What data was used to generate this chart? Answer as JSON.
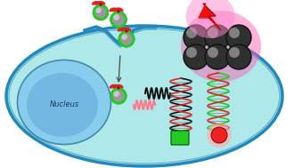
{
  "cell_color": "#aee8e8",
  "cell_edge_color": "#2288bb",
  "cell_edge_width": 2.0,
  "nucleus_color": "#88ccee",
  "nucleus_core_color": "#66aadd",
  "nucleus_edge_color": "#4488aa",
  "background_color": "#ffffff",
  "lightning_color": "#ee1111",
  "glow_pink": "#ff55aa",
  "np_face": "#303030",
  "np_edge": "#111111",
  "np_hl": "#aaaaaa",
  "probe_red": "#dd2222",
  "probe_green": "#22cc22",
  "probe_gray": "#999999",
  "probe_gray_dark": "#555555",
  "arrow_color": "#555555",
  "wavy_black": "#111111",
  "wavy_pink": "#ff7788",
  "dna_black": "#111111",
  "dna_red": "#dd2222",
  "dna_green": "#22cc22",
  "dot_green": "#22cc22",
  "dot_red": "#ee2222",
  "dot_glow_green": "#aaffaa",
  "dot_glow_red": "#ffaaaa"
}
